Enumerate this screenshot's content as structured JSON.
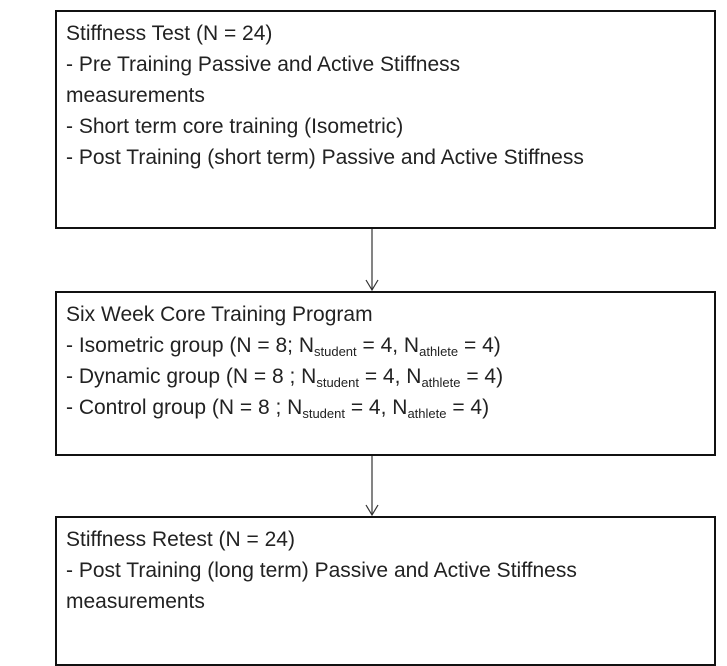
{
  "nodes": [
    {
      "lines": [
        [
          "Stiffness Test (N = 24)"
        ],
        [
          "- Pre Training Passive and Active Stiffness"
        ],
        [
          "measurements"
        ],
        [
          "- Short term core training (Isometric)"
        ],
        [
          "- Post Training (short term) Passive and Active Stiffness"
        ]
      ]
    },
    {
      "lines": [
        [
          "Six Week Core Training Program"
        ],
        [
          "- Isometric group (N = 8; N",
          {
            "sub": "student"
          },
          " = 4, N",
          {
            "sub": "athlete"
          },
          " = 4)"
        ],
        [
          "- Dynamic group (N = 8 ; N",
          {
            "sub": "student"
          },
          " = 4, N",
          {
            "sub": "athlete"
          },
          " = 4)"
        ],
        [
          "- Control group (N = 8 ; N",
          {
            "sub": "student"
          },
          " = 4, N",
          {
            "sub": "athlete"
          },
          " = 4)"
        ]
      ]
    },
    {
      "lines": [
        [
          "Stiffness Retest (N = 24)"
        ],
        [
          "- Post Training (long term) Passive and Active Stiffness"
        ],
        [
          "measurements"
        ]
      ]
    }
  ]
}
